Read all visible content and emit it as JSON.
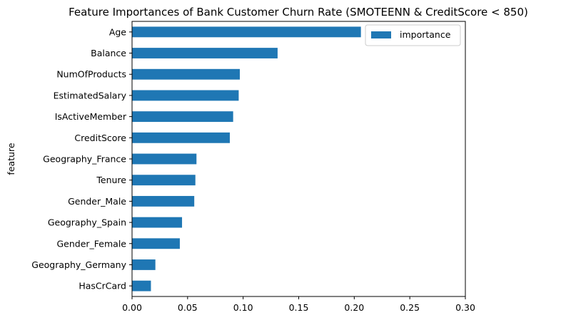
{
  "chart_data": {
    "type": "bar",
    "orientation": "horizontal",
    "title": "Feature Importances of Bank Customer Churn Rate (SMOTEENN & CreditScore < 850)",
    "xlabel": "",
    "ylabel": "feature",
    "xlim": [
      0.0,
      0.3
    ],
    "xticks": [
      "0.00",
      "0.05",
      "0.10",
      "0.15",
      "0.20",
      "0.25",
      "0.30"
    ],
    "xtick_values": [
      0.0,
      0.05,
      0.1,
      0.15,
      0.2,
      0.25,
      0.3
    ],
    "grid": false,
    "legend": {
      "position": "top-right",
      "entries": [
        "importance"
      ]
    },
    "bar_color": "#1f77b4",
    "categories": [
      "Age",
      "Balance",
      "NumOfProducts",
      "EstimatedSalary",
      "IsActiveMember",
      "CreditScore",
      "Geography_France",
      "Tenure",
      "Gender_Male",
      "Geography_Spain",
      "Gender_Female",
      "Geography_Germany",
      "HasCrCard"
    ],
    "series": [
      {
        "name": "importance",
        "values": [
          0.206,
          0.131,
          0.097,
          0.096,
          0.091,
          0.088,
          0.058,
          0.057,
          0.056,
          0.045,
          0.043,
          0.021,
          0.017
        ]
      }
    ]
  }
}
